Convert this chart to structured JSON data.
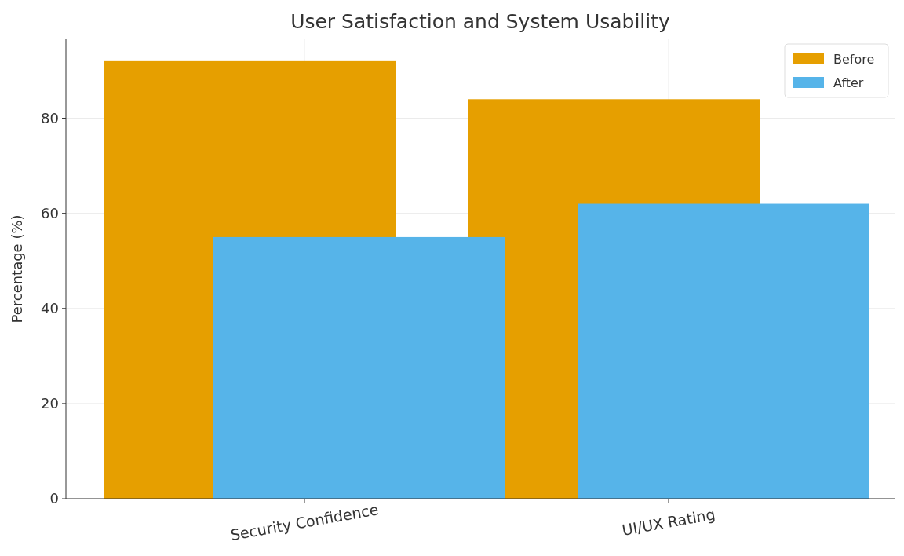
{
  "chart_data": {
    "type": "bar",
    "title": "User Satisfaction and System Usability",
    "ylabel": "Percentage (%)",
    "categories": [
      "Security Confidence",
      "UI/UX Rating"
    ],
    "series": [
      {
        "name": "Before",
        "color": "#e69f00",
        "values": [
          92,
          84
        ]
      },
      {
        "name": "After",
        "color": "#56b4e9",
        "values": [
          55,
          62
        ]
      }
    ],
    "ylim": [
      0,
      96.6
    ],
    "yticks": [
      0,
      20,
      40,
      60,
      80
    ],
    "grid": true,
    "legend": "top right"
  }
}
